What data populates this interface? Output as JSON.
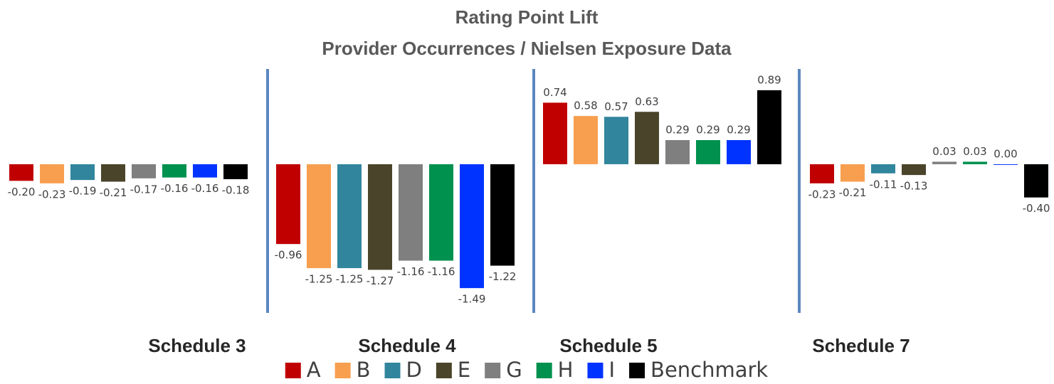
{
  "chart_data": {
    "type": "bar",
    "title": [
      "Rating Point Lift",
      "Provider Occurrences / Nielsen Exposure Data"
    ],
    "categories": [
      "Schedule 3",
      "Schedule 4",
      "Schedule 5",
      "Schedule 7"
    ],
    "ylim": [
      -1.6,
      1.0
    ],
    "series": [
      {
        "name": "A",
        "color": "#c00000",
        "values": [
          -0.2,
          -0.96,
          0.74,
          -0.23
        ],
        "value_labels": [
          "-0.20",
          "-0.96",
          "0.74",
          "-0.23"
        ]
      },
      {
        "name": "B",
        "color": "#f79f4f",
        "values": [
          -0.23,
          -1.25,
          0.58,
          -0.21
        ],
        "value_labels": [
          "-0.23",
          "-1.25",
          "0.58",
          "-0.21"
        ]
      },
      {
        "name": "D",
        "color": "#31859c",
        "values": [
          -0.19,
          -1.25,
          0.57,
          -0.11
        ],
        "value_labels": [
          "-0.19",
          "-1.25",
          "0.57",
          "-0.11"
        ]
      },
      {
        "name": "E",
        "color": "#4a442a",
        "values": [
          -0.21,
          -1.27,
          0.63,
          -0.13
        ],
        "value_labels": [
          "-0.21",
          "-1.27",
          "0.63",
          "-0.13"
        ]
      },
      {
        "name": "G",
        "color": "#7f7f7f",
        "values": [
          -0.17,
          -1.16,
          0.29,
          0.03
        ],
        "value_labels": [
          "-0.17",
          "-1.16",
          "0.29",
          "0.03"
        ]
      },
      {
        "name": "H",
        "color": "#00914f",
        "values": [
          -0.16,
          -1.16,
          0.29,
          0.03
        ],
        "value_labels": [
          "-0.16",
          "-1.16",
          "0.29",
          "0.03"
        ]
      },
      {
        "name": "I",
        "color": "#0033ff",
        "values": [
          -0.16,
          -1.49,
          0.29,
          0.0
        ],
        "value_labels": [
          "-0.16",
          "-1.49",
          "0.29",
          "0.00"
        ]
      },
      {
        "name": "Benchmark",
        "color": "#000000",
        "values": [
          -0.18,
          -1.22,
          0.89,
          -0.4
        ],
        "value_labels": [
          "-0.18",
          "-1.22",
          "0.89",
          "-0.40"
        ]
      }
    ]
  }
}
